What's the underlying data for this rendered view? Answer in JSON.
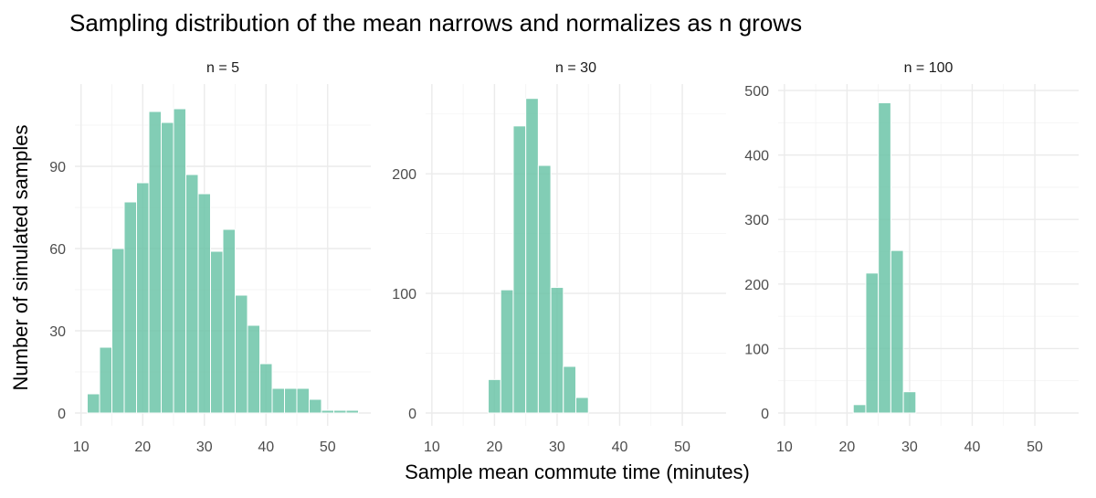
{
  "chart_data": {
    "type": "bar",
    "title": "Sampling distribution of the mean narrows and normalizes as n grows",
    "xlabel": "Sample mean commute time (minutes)",
    "ylabel": "Number of simulated samples",
    "bar_color": "#66c2a5",
    "bin_width": 2,
    "xlim": [
      9,
      57
    ],
    "x_ticks": [
      10,
      20,
      30,
      40,
      50
    ],
    "grid": true,
    "panels": [
      {
        "label": "n = 5",
        "ylim": [
          0,
          120
        ],
        "y_ticks": [
          0,
          30,
          60,
          90
        ],
        "bins": [
          {
            "x": 12,
            "y": 7
          },
          {
            "x": 14,
            "y": 24
          },
          {
            "x": 16,
            "y": 60
          },
          {
            "x": 18,
            "y": 77
          },
          {
            "x": 20,
            "y": 84
          },
          {
            "x": 22,
            "y": 110
          },
          {
            "x": 24,
            "y": 106
          },
          {
            "x": 26,
            "y": 111
          },
          {
            "x": 28,
            "y": 87
          },
          {
            "x": 30,
            "y": 80
          },
          {
            "x": 32,
            "y": 59
          },
          {
            "x": 34,
            "y": 67
          },
          {
            "x": 36,
            "y": 43
          },
          {
            "x": 38,
            "y": 32
          },
          {
            "x": 40,
            "y": 18
          },
          {
            "x": 42,
            "y": 9
          },
          {
            "x": 44,
            "y": 9
          },
          {
            "x": 46,
            "y": 9
          },
          {
            "x": 48,
            "y": 5
          },
          {
            "x": 50,
            "y": 1
          },
          {
            "x": 52,
            "y": 1
          },
          {
            "x": 54,
            "y": 1
          }
        ]
      },
      {
        "label": "n = 30",
        "ylim": [
          0,
          275
        ],
        "y_ticks": [
          0,
          100,
          200
        ],
        "bins": [
          {
            "x": 20,
            "y": 28
          },
          {
            "x": 22,
            "y": 103
          },
          {
            "x": 24,
            "y": 240
          },
          {
            "x": 26,
            "y": 263
          },
          {
            "x": 28,
            "y": 207
          },
          {
            "x": 30,
            "y": 105
          },
          {
            "x": 32,
            "y": 39
          },
          {
            "x": 34,
            "y": 13
          }
        ]
      },
      {
        "label": "n = 100",
        "ylim": [
          0,
          510
        ],
        "y_ticks": [
          0,
          100,
          200,
          300,
          400,
          500
        ],
        "bins": [
          {
            "x": 22,
            "y": 13
          },
          {
            "x": 24,
            "y": 217
          },
          {
            "x": 26,
            "y": 481
          },
          {
            "x": 28,
            "y": 252
          },
          {
            "x": 30,
            "y": 33
          }
        ]
      }
    ]
  }
}
